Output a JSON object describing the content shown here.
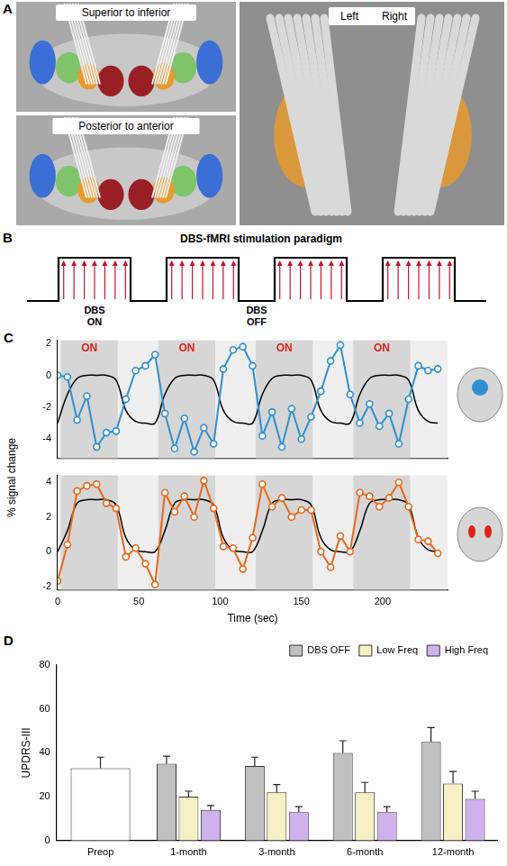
{
  "panel_labels": [
    "A",
    "B",
    "C",
    "D"
  ],
  "panel_a": {
    "views": [
      "Superior to inferior",
      "Posterior to anterior"
    ],
    "sides": [
      "Left",
      "Right"
    ]
  },
  "panel_b": {
    "title": "DBS-fMRI stimulation paradigm",
    "on_label": "DBS ON",
    "off_label": "DBS OFF",
    "blocks": 4,
    "pulses_per_block": 7
  },
  "panel_c": {
    "y_label": "% signal change"
  },
  "chart_data": [
    {
      "type": "line",
      "x": [
        0,
        6,
        12,
        18,
        24,
        30,
        36,
        42,
        48,
        54,
        60,
        66,
        72,
        78,
        84,
        90,
        96,
        102,
        108,
        114,
        120,
        126,
        132,
        138,
        144,
        150,
        156,
        162,
        168,
        174,
        180,
        186,
        192,
        198,
        204,
        210,
        216,
        222,
        228,
        234
      ],
      "series": [
        {
          "color": "#2e8fd1",
          "marker": "circle",
          "values": [
            0,
            -0.1,
            -2.8,
            -1.3,
            -4.5,
            -3.6,
            -3.5,
            -1.5,
            0.3,
            0.6,
            1.3,
            -2.4,
            -4.6,
            -2.7,
            -4.8,
            -3.3,
            -4.3,
            0.4,
            1.6,
            1.8,
            0.6,
            -3.8,
            -2.3,
            -4.5,
            -2.1,
            -4.0,
            -2.6,
            -1.0,
            0.9,
            1.9,
            -1.2,
            -3.0,
            -1.8,
            -3.2,
            -2.4,
            -4.3,
            -1.5,
            0.6,
            0.3,
            0.4
          ]
        },
        {
          "color": "#000000",
          "marker": "none",
          "values": [
            -3,
            -1.2,
            -0.2,
            0,
            0,
            0,
            -0.3,
            -2.2,
            -2.9,
            -3,
            -3,
            -1.2,
            -0.2,
            0,
            0,
            0,
            -0.3,
            -2.2,
            -2.9,
            -3,
            -3,
            -1.2,
            -0.2,
            0,
            0,
            0,
            -0.3,
            -2.2,
            -2.9,
            -3,
            -3,
            -1.2,
            -0.2,
            0,
            0,
            0,
            -0.3,
            -2.2,
            -2.9,
            -3
          ]
        }
      ],
      "xlim": [
        0,
        240
      ],
      "xticks": [
        0,
        50,
        100,
        150,
        200
      ],
      "ylim": [
        -5.2,
        2.2
      ],
      "yticks": [
        -4,
        -2,
        0,
        2
      ],
      "tick_labels": "y",
      "grid": false,
      "on_blocks": [
        [
          2,
          37
        ],
        [
          62,
          97
        ],
        [
          122,
          157
        ],
        [
          182,
          217
        ]
      ],
      "on_label": "ON"
    },
    {
      "type": "line",
      "x": [
        0,
        6,
        12,
        18,
        24,
        30,
        36,
        42,
        48,
        54,
        60,
        66,
        72,
        78,
        84,
        90,
        96,
        102,
        108,
        114,
        120,
        126,
        132,
        138,
        144,
        150,
        156,
        162,
        168,
        174,
        180,
        186,
        192,
        198,
        204,
        210,
        216,
        222,
        228,
        234
      ],
      "series": [
        {
          "color": "#e8671b",
          "marker": "circle",
          "values": [
            -1.7,
            0.4,
            3.5,
            3.8,
            3.9,
            2.8,
            2.5,
            -0.3,
            0.2,
            -0.7,
            -1.9,
            3.4,
            2.3,
            3.2,
            2.0,
            4.1,
            2.5,
            0.3,
            0.2,
            -1.0,
            0.8,
            3.9,
            2.6,
            3.1,
            2.0,
            2.4,
            2.4,
            0.0,
            -0.9,
            0.9,
            0.0,
            3.4,
            3.2,
            2.6,
            3.1,
            4.0,
            2.6,
            0.7,
            0.6,
            -0.1
          ]
        },
        {
          "color": "#000000",
          "marker": "none",
          "values": [
            0,
            1.2,
            2.8,
            3,
            3,
            3,
            2.7,
            0.8,
            0.1,
            0,
            0,
            1.2,
            2.8,
            3,
            3,
            3,
            2.7,
            0.8,
            0.1,
            0,
            0,
            1.2,
            2.8,
            3,
            3,
            3,
            2.7,
            0.8,
            0.1,
            0,
            0,
            1.2,
            2.8,
            3,
            3,
            3,
            2.7,
            0.8,
            0.1,
            0
          ]
        }
      ],
      "x_label": "Time (sec)",
      "xlim": [
        0,
        240
      ],
      "xticks": [
        0,
        50,
        100,
        150,
        200
      ],
      "ylim": [
        -2.2,
        4.4
      ],
      "yticks": [
        -2,
        0,
        2,
        4
      ],
      "grid": false,
      "on_blocks": [
        [
          2,
          37
        ],
        [
          62,
          97
        ],
        [
          122,
          157
        ],
        [
          182,
          217
        ]
      ]
    },
    {
      "type": "bar",
      "categories": [
        "Preop",
        "1-month",
        "3-month",
        "6-month",
        "12-month"
      ],
      "series": [
        {
          "name": "DBS OFF",
          "color": "#c0c0c0",
          "values": [
            null,
            35,
            34,
            40,
            45
          ],
          "errors": [
            null,
            3.5,
            4,
            5.5,
            6.5
          ]
        },
        {
          "name": "Low Freq",
          "color": "#f6f1c4",
          "values": [
            null,
            20,
            22,
            22,
            26
          ],
          "errors": [
            null,
            2.5,
            3.5,
            4.5,
            5.5
          ]
        },
        {
          "name": "High Freq",
          "color": "#cfb2ec",
          "values": [
            null,
            14,
            13,
            13,
            19
          ],
          "errors": [
            null,
            2,
            2.5,
            2.5,
            3.5
          ]
        },
        {
          "color": "#ffffff",
          "values": [
            33,
            null,
            null,
            null,
            null
          ],
          "errors": [
            5,
            null,
            null,
            null,
            null
          ]
        }
      ],
      "y_label": "UPDRS-III",
      "ylim": [
        0,
        80
      ],
      "yticks": [
        0,
        20,
        40,
        60,
        80
      ],
      "legend": "upper right",
      "grid": false
    }
  ]
}
